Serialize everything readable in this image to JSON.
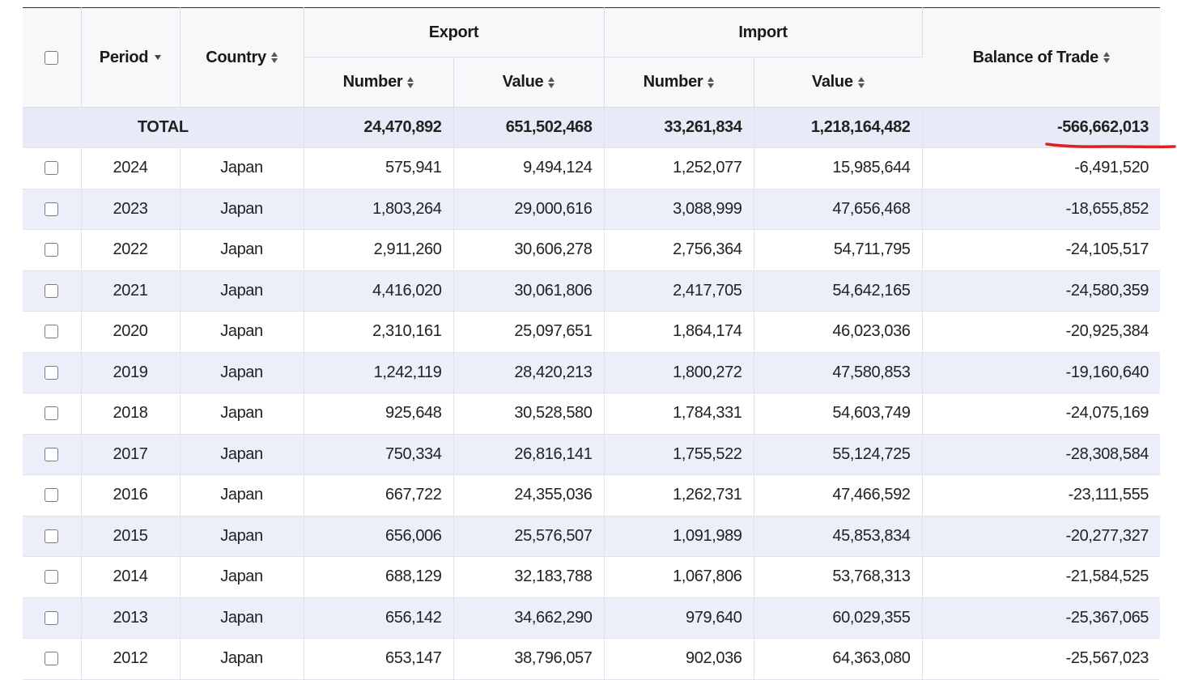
{
  "header": {
    "period": "Period",
    "country": "Country",
    "export_group": "Export",
    "import_group": "Import",
    "balance": "Balance of Trade",
    "number": "Number",
    "value": "Value",
    "sort_icons": {
      "period": "sort-descending-icon",
      "others": "sort-both-icon"
    }
  },
  "total": {
    "label": "TOTAL",
    "export_number": "24,470,892",
    "export_value": "651,502,468",
    "import_number": "33,261,834",
    "import_value": "1,218,164,482",
    "balance": "-566,662,013"
  },
  "annotation": {
    "color": "#e02020",
    "target": "total-balance"
  },
  "colors": {
    "total_row_bg": "#e8ebf7",
    "alt_row_bg": "#eceef9",
    "header_bg": "#f7f8fa"
  },
  "rows": [
    {
      "period": "2024",
      "country": "Japan",
      "export_number": "575,941",
      "export_value": "9,494,124",
      "import_number": "1,252,077",
      "import_value": "15,985,644",
      "balance": "-6,491,520"
    },
    {
      "period": "2023",
      "country": "Japan",
      "export_number": "1,803,264",
      "export_value": "29,000,616",
      "import_number": "3,088,999",
      "import_value": "47,656,468",
      "balance": "-18,655,852"
    },
    {
      "period": "2022",
      "country": "Japan",
      "export_number": "2,911,260",
      "export_value": "30,606,278",
      "import_number": "2,756,364",
      "import_value": "54,711,795",
      "balance": "-24,105,517"
    },
    {
      "period": "2021",
      "country": "Japan",
      "export_number": "4,416,020",
      "export_value": "30,061,806",
      "import_number": "2,417,705",
      "import_value": "54,642,165",
      "balance": "-24,580,359"
    },
    {
      "period": "2020",
      "country": "Japan",
      "export_number": "2,310,161",
      "export_value": "25,097,651",
      "import_number": "1,864,174",
      "import_value": "46,023,036",
      "balance": "-20,925,384"
    },
    {
      "period": "2019",
      "country": "Japan",
      "export_number": "1,242,119",
      "export_value": "28,420,213",
      "import_number": "1,800,272",
      "import_value": "47,580,853",
      "balance": "-19,160,640"
    },
    {
      "period": "2018",
      "country": "Japan",
      "export_number": "925,648",
      "export_value": "30,528,580",
      "import_number": "1,784,331",
      "import_value": "54,603,749",
      "balance": "-24,075,169"
    },
    {
      "period": "2017",
      "country": "Japan",
      "export_number": "750,334",
      "export_value": "26,816,141",
      "import_number": "1,755,522",
      "import_value": "55,124,725",
      "balance": "-28,308,584"
    },
    {
      "period": "2016",
      "country": "Japan",
      "export_number": "667,722",
      "export_value": "24,355,036",
      "import_number": "1,262,731",
      "import_value": "47,466,592",
      "balance": "-23,111,555"
    },
    {
      "period": "2015",
      "country": "Japan",
      "export_number": "656,006",
      "export_value": "25,576,507",
      "import_number": "1,091,989",
      "import_value": "45,853,834",
      "balance": "-20,277,327"
    },
    {
      "period": "2014",
      "country": "Japan",
      "export_number": "688,129",
      "export_value": "32,183,788",
      "import_number": "1,067,806",
      "import_value": "53,768,313",
      "balance": "-21,584,525"
    },
    {
      "period": "2013",
      "country": "Japan",
      "export_number": "656,142",
      "export_value": "34,662,290",
      "import_number": "979,640",
      "import_value": "60,029,355",
      "balance": "-25,367,065"
    },
    {
      "period": "2012",
      "country": "Japan",
      "export_number": "653,147",
      "export_value": "38,796,057",
      "import_number": "902,036",
      "import_value": "64,363,080",
      "balance": "-25,567,023"
    }
  ]
}
